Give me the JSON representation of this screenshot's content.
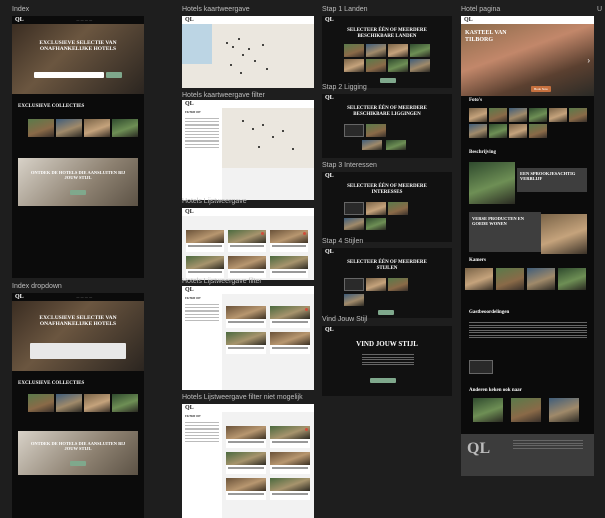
{
  "labels": {
    "index": "Index",
    "index_dropdown": "Index dropdown",
    "hotels_map": "Hotels kaartweergave",
    "hotels_map_filter": "Hotels kaartweergave filter",
    "hotels_list": "Hotels Lijstweergave",
    "hotels_list_filter": "Hotels Lijstweergave filter",
    "hotels_list_filter_impossible": "Hotels Lijstweergave filter niet mogelijk",
    "step1": "Stap 1 Landen",
    "step2": "Stap 2 Ligging",
    "step3": "Stap 3 Interessen",
    "step4": "Stap 4 Stijlen",
    "vind_jouw_stijl": "Vind Jouw Stijl",
    "hotel_page": "Hotel pagina",
    "extra": "U"
  },
  "brand": {
    "logo": "QL"
  },
  "index": {
    "hero_title": "EXCLUSIEVE SELECTIE VAN ONAFHANKELIJKE HOTELS",
    "collections_title": "EXCLUSIEVE COLLECTIES",
    "banner_title": "ONTDEK DE HOTELS DIE AANSLUITEN BIJ JOUW STIJL"
  },
  "filter": {
    "title": "FILTER OP"
  },
  "steps": {
    "step1_title": "SELECTEER ÉÉN OF MEERDERE BESCHIKBARE LANDEN",
    "step2_title": "SELECTEER ÉÉN OF MEERDERE BESCHIKBARE LIGGINGEN",
    "step3_title": "SELECTEER ÉÉN OF MEERDERE INTERESSES",
    "step4_title": "SELECTEER ÉÉN OF MEERDERE STIJLEN",
    "vind_title": "VIND JOUW STIJL"
  },
  "hotel": {
    "title": "KASTEEL VAN TILBORG",
    "book_button": "Book Now",
    "photos": "Foto's",
    "description": "Beschrijving",
    "desc_block1": "EEN SPROOKJESACHTIG VERBLIJF",
    "desc_block2": "VERSE PRODUCTEN EN GOEDE WONEN",
    "rooms": "Kamers",
    "reviews": "Gastbeoordelingen",
    "others": "Anderen keken ook naar"
  },
  "colors": {
    "accent": "#7fa88c",
    "bg": "#1e1e1e",
    "badge": "#d04c3b"
  }
}
